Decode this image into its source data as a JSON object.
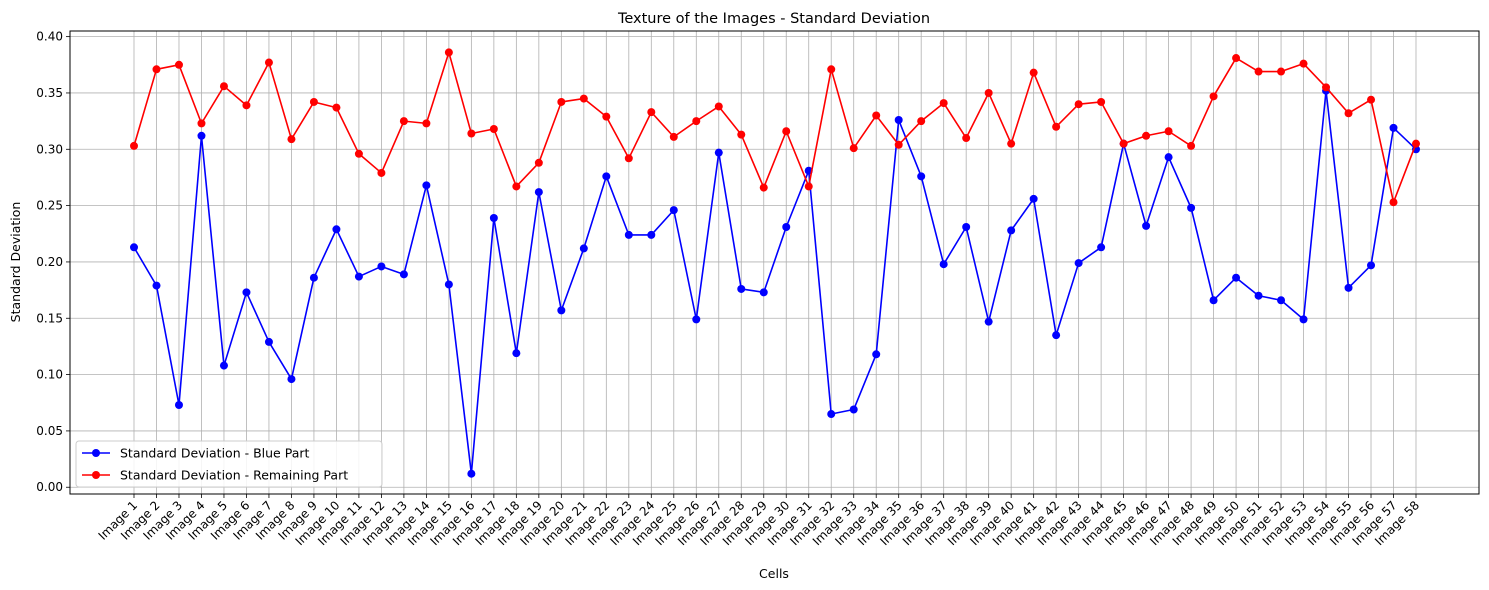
{
  "chart_data": {
    "type": "line",
    "title": "Texture of the Images - Standard Deviation",
    "xlabel": "Cells",
    "ylabel": "Standard Deviation",
    "ylim": [
      -0.006,
      0.405
    ],
    "yticks": [
      "0.00",
      "0.05",
      "0.10",
      "0.15",
      "0.20",
      "0.25",
      "0.30",
      "0.35",
      "0.40"
    ],
    "grid": true,
    "legend_position": "lower-left",
    "categories": [
      "Image 1",
      "Image 2",
      "Image 3",
      "Image 4",
      "Image 5",
      "Image 6",
      "Image 7",
      "Image 8",
      "Image 9",
      "Image 10",
      "Image 11",
      "Image 12",
      "Image 13",
      "Image 14",
      "Image 15",
      "Image 16",
      "Image 17",
      "Image 18",
      "Image 19",
      "Image 20",
      "Image 21",
      "Image 22",
      "Image 23",
      "Image 24",
      "Image 25",
      "Image 26",
      "Image 27",
      "Image 28",
      "Image 29",
      "Image 30",
      "Image 31",
      "Image 32",
      "Image 33",
      "Image 34",
      "Image 35",
      "Image 36",
      "Image 37",
      "Image 38",
      "Image 39",
      "Image 40",
      "Image 41",
      "Image 42",
      "Image 43",
      "Image 44",
      "Image 45",
      "Image 46",
      "Image 47",
      "Image 48",
      "Image 49",
      "Image 50",
      "Image 51",
      "Image 52",
      "Image 53",
      "Image 54",
      "Image 55",
      "Image 56",
      "Image 57",
      "Image 58"
    ],
    "series": [
      {
        "name": "Standard Deviation - Blue Part",
        "color": "#0000ff",
        "values": [
          0.213,
          0.179,
          0.073,
          0.312,
          0.108,
          0.173,
          0.129,
          0.096,
          0.186,
          0.229,
          0.187,
          0.196,
          0.189,
          0.268,
          0.18,
          0.012,
          0.239,
          0.119,
          0.262,
          0.157,
          0.212,
          0.276,
          0.224,
          0.224,
          0.246,
          0.149,
          0.297,
          0.176,
          0.173,
          0.231,
          0.281,
          0.065,
          0.069,
          0.118,
          0.326,
          0.276,
          0.198,
          0.231,
          0.147,
          0.228,
          0.256,
          0.135,
          0.199,
          0.213,
          0.305,
          0.232,
          0.293,
          0.248,
          0.166,
          0.186,
          0.17,
          0.166,
          0.149,
          0.352,
          0.177,
          0.197,
          0.319,
          0.3
        ]
      },
      {
        "name": "Standard Deviation - Remaining Part",
        "color": "#ff0000",
        "values": [
          0.303,
          0.371,
          0.375,
          0.323,
          0.356,
          0.339,
          0.377,
          0.309,
          0.342,
          0.337,
          0.296,
          0.279,
          0.325,
          0.323,
          0.386,
          0.314,
          0.318,
          0.267,
          0.288,
          0.342,
          0.345,
          0.329,
          0.292,
          0.333,
          0.311,
          0.325,
          0.338,
          0.313,
          0.266,
          0.316,
          0.267,
          0.371,
          0.301,
          0.33,
          0.304,
          0.325,
          0.341,
          0.31,
          0.35,
          0.305,
          0.368,
          0.32,
          0.34,
          0.342,
          0.305,
          0.312,
          0.316,
          0.303,
          0.347,
          0.381,
          0.369,
          0.369,
          0.376,
          0.355,
          0.332,
          0.344,
          0.253,
          0.305
        ]
      }
    ]
  }
}
